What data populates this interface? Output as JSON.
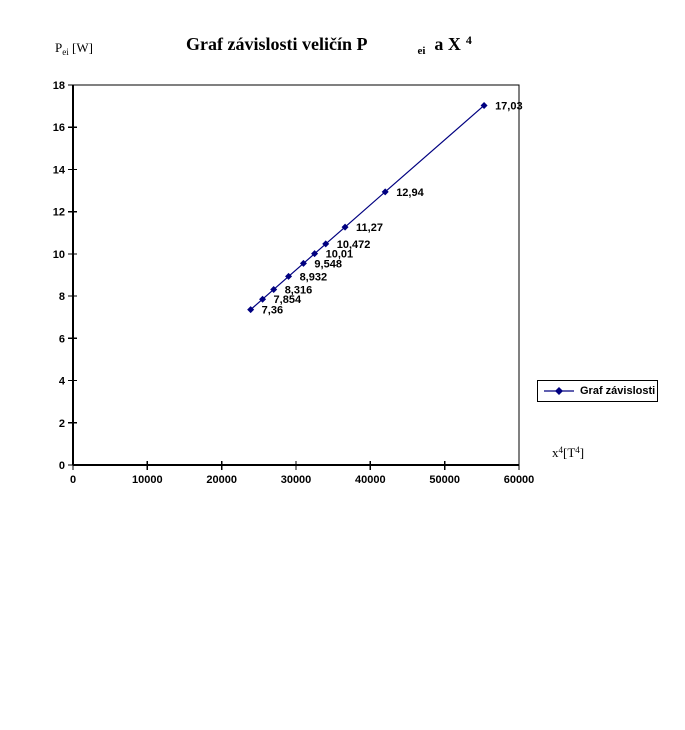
{
  "title": {
    "main": "Graf závislosti veličín P",
    "sub": "ei",
    "mid": "a X",
    "sup": "4"
  },
  "y_axis_title": {
    "base": "P",
    "sub": "ei",
    "rest": " [W]"
  },
  "x_axis_title": {
    "base": "x",
    "sup1": "4",
    "mid": "[T",
    "sup2": "4",
    "close": "]"
  },
  "legend": {
    "label": "Graf závislosti"
  },
  "colors": {
    "series": "#000080",
    "axis": "#000000",
    "text": "#000000",
    "background": "#ffffff"
  },
  "chart_data": {
    "type": "line",
    "title": "Graf závislosti veličín P ei a X 4",
    "xlabel": "x4 [T4]",
    "ylabel": "P ei [W]",
    "xlim": [
      0,
      60000
    ],
    "ylim": [
      0,
      18
    ],
    "x_ticks": [
      0,
      10000,
      20000,
      30000,
      40000,
      50000,
      60000
    ],
    "x_tick_labels": [
      "0",
      "10000",
      "20000",
      "30000",
      "40000",
      "50000",
      "60000"
    ],
    "y_ticks": [
      0,
      2,
      4,
      6,
      8,
      10,
      12,
      14,
      16,
      18
    ],
    "y_tick_labels": [
      "0",
      "2",
      "4",
      "6",
      "8",
      "10",
      "12",
      "14",
      "16",
      "18"
    ],
    "grid": false,
    "legend_position": "right",
    "series": [
      {
        "name": "Graf závislosti",
        "color": "#000080",
        "marker": "diamond",
        "x": [
          23900,
          25500,
          27000,
          29000,
          31000,
          32500,
          34000,
          36600,
          42000,
          55300
        ],
        "y": [
          7.36,
          7.854,
          8.316,
          8.932,
          9.548,
          10.01,
          10.472,
          11.27,
          12.94,
          17.03
        ],
        "point_labels": [
          "7,36",
          "7,854",
          "8,316",
          "8,932",
          "9,548",
          "10,01",
          "10,472",
          "11,27",
          "12,94",
          "17,03"
        ]
      }
    ]
  }
}
